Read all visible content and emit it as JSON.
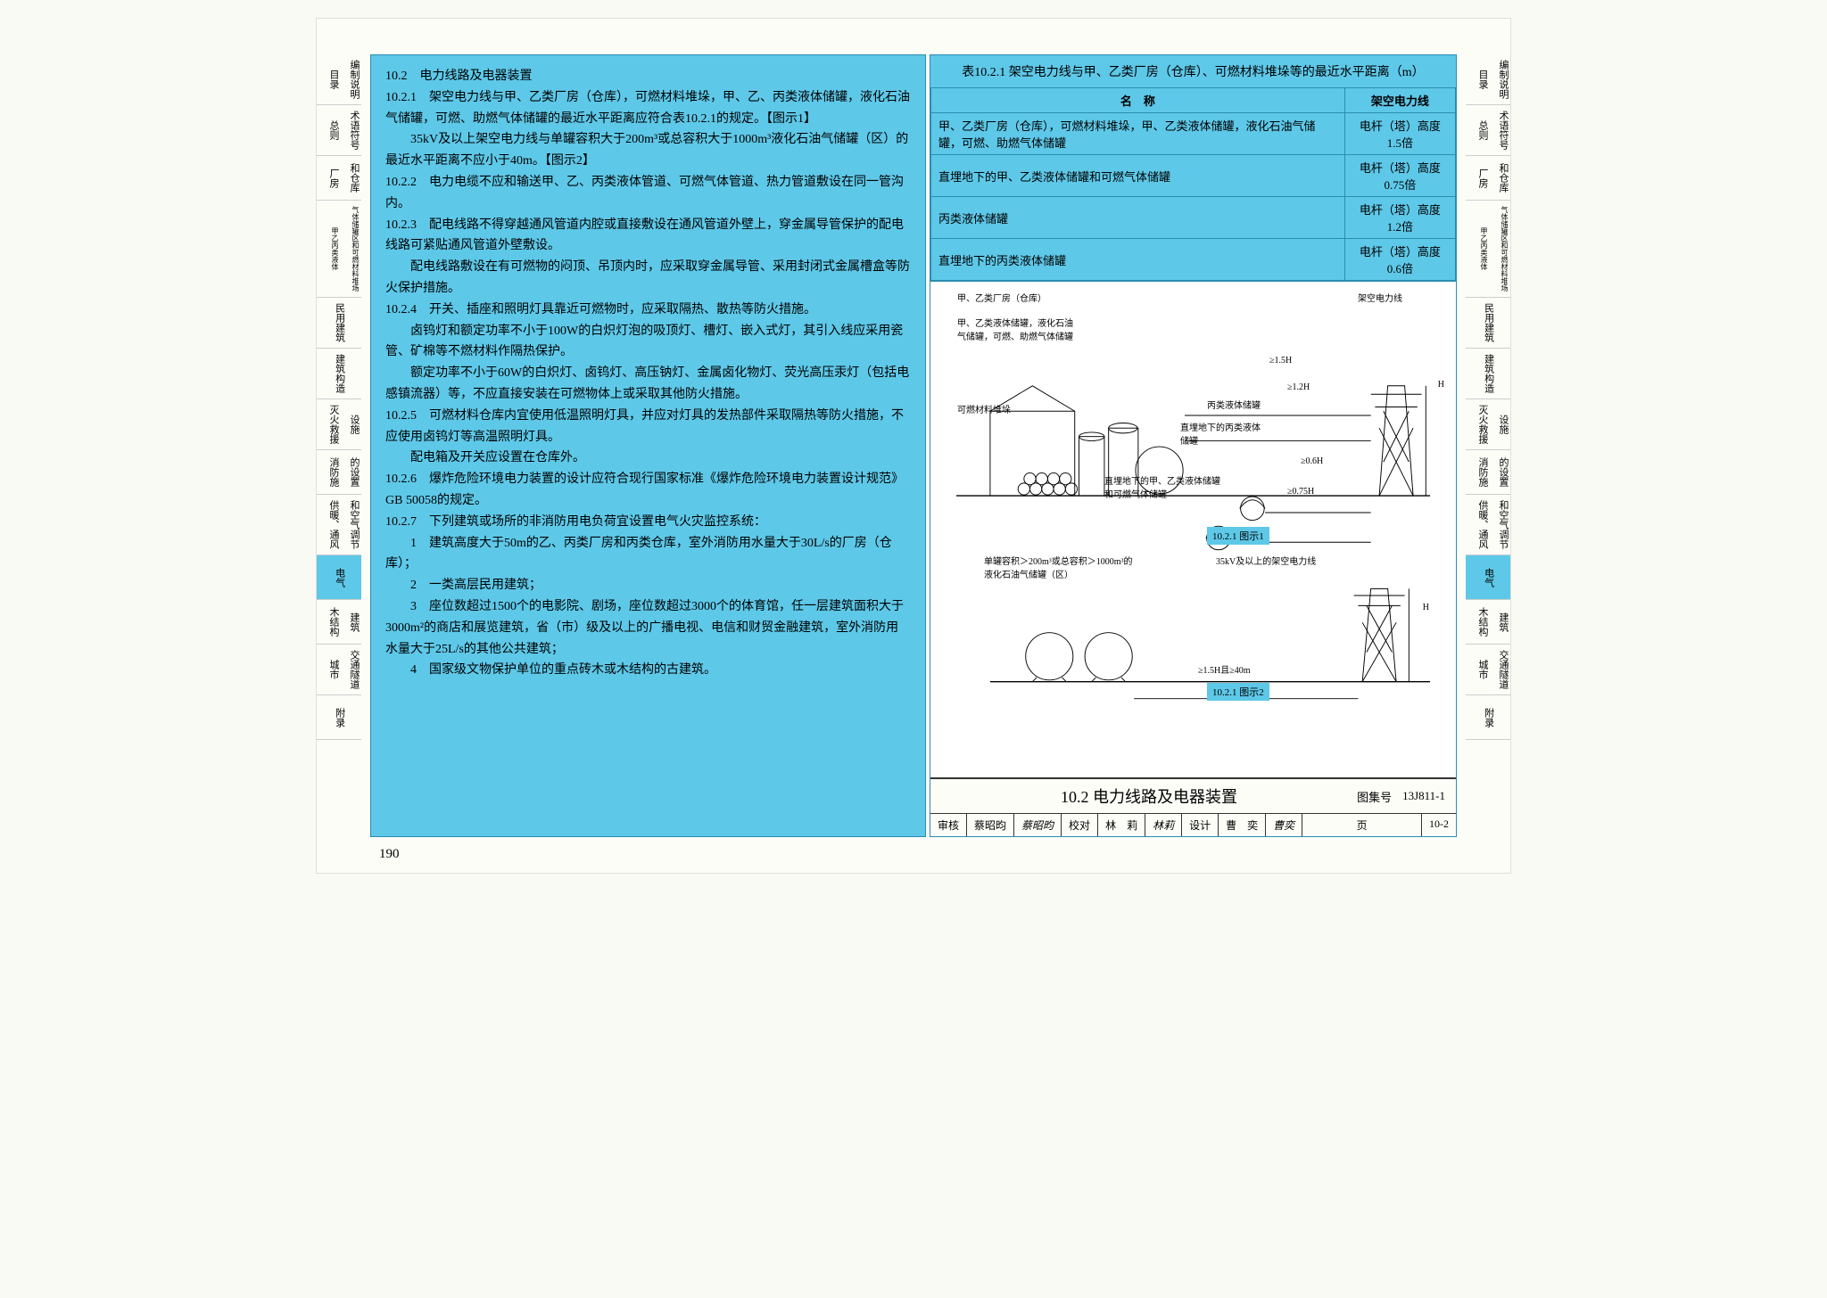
{
  "tabs": [
    {
      "l1": "目录",
      "l2": "编制说明"
    },
    {
      "l1": "总则",
      "l2": "术语符号"
    },
    {
      "l1": "厂房",
      "l2": "和仓库"
    },
    {
      "l1": "甲乙丙类液体",
      "l2": "气体储罐区和可燃材料堆场",
      "tiny": true
    },
    {
      "l1": "民用建筑",
      "l2": ""
    },
    {
      "l1": "建筑构造",
      "l2": ""
    },
    {
      "l1": "灭火救援",
      "l2": "设施"
    },
    {
      "l1": "消防施",
      "l2": "的设置"
    },
    {
      "l1": "供暖、通风",
      "l2": "和空气调节"
    },
    {
      "l1": "电气",
      "l2": "",
      "active": true
    },
    {
      "l1": "木结构",
      "l2": "建筑"
    },
    {
      "l1": "城市",
      "l2": "交通隧道"
    },
    {
      "l1": "附录",
      "l2": ""
    }
  ],
  "body": {
    "h1": "10.2　电力线路及电器装置",
    "p1": "10.2.1　架空电力线与甲、乙类厂房（仓库），可燃材料堆垛，甲、乙、丙类液体储罐，液化石油气储罐，可燃、助燃气体储罐的最近水平距离应符合表10.2.1的规定。【图示1】",
    "p2": "35kV及以上架空电力线与单罐容积大于200m³或总容积大于1000m³液化石油气储罐（区）的最近水平距离不应小于40m。【图示2】",
    "p3": "10.2.2　电力电缆不应和输送甲、乙、丙类液体管道、可燃气体管道、热力管道敷设在同一管沟内。",
    "p4": "10.2.3　配电线路不得穿越通风管道内腔或直接敷设在通风管道外壁上，穿金属导管保护的配电线路可紧贴通风管道外壁敷设。",
    "p5": "配电线路敷设在有可燃物的闷顶、吊顶内时，应采取穿金属导管、采用封闭式金属槽盒等防火保护措施。",
    "p6": "10.2.4　开关、插座和照明灯具靠近可燃物时，应采取隔热、散热等防火措施。",
    "p7": "卤钨灯和额定功率不小于100W的白炽灯泡的吸顶灯、槽灯、嵌入式灯，其引入线应采用瓷管、矿棉等不燃材料作隔热保护。",
    "p8": "额定功率不小于60W的白炽灯、卤钨灯、高压钠灯、金属卤化物灯、荧光高压汞灯（包括电感镇流器）等，不应直接安装在可燃物体上或采取其他防火措施。",
    "p9": "10.2.5　可燃材料仓库内宜使用低温照明灯具，并应对灯具的发热部件采取隔热等防火措施，不应使用卤钨灯等高温照明灯具。",
    "p10": "配电箱及开关应设置在仓库外。",
    "p11": "10.2.6　爆炸危险环境电力装置的设计应符合现行国家标准《爆炸危险环境电力装置设计规范》GB 50058的规定。",
    "p12": "10.2.7　下列建筑或场所的非消防用电负荷宜设置电气火灾监控系统：",
    "li1": "1　建筑高度大于50m的乙、丙类厂房和丙类仓库，室外消防用水量大于30L/s的厂房（仓库）；",
    "li2": "2　一类高层民用建筑；",
    "li3": "3　座位数超过1500个的电影院、剧场，座位数超过3000个的体育馆，任一层建筑面积大于3000m²的商店和展览建筑，省（市）级及以上的广播电视、电信和财贸金融建筑，室外消防用水量大于25L/s的其他公共建筑；",
    "li4": "4　国家级文物保护单位的重点砖木或木结构的古建筑。"
  },
  "table": {
    "title": "表10.2.1 架空电力线与甲、乙类厂房（仓库）、可燃材料堆垛等的最近水平距离（m）",
    "h1": "名　称",
    "h2": "架空电力线",
    "r1c1": "甲、乙类厂房（仓库），可燃材料堆垛，甲、乙类液体储罐，液化石油气储罐，可燃、助燃气体储罐",
    "r1c2": "电杆（塔）高度1.5倍",
    "r2c1": "直埋地下的甲、乙类液体储罐和可燃气体储罐",
    "r2c2": "电杆（塔）高度0.75倍",
    "r3c1": "丙类液体储罐",
    "r3c2": "电杆（塔）高度1.2倍",
    "r4c1": "直埋地下的丙类液体储罐",
    "r4c2": "电杆（塔）高度0.6倍"
  },
  "diagram": {
    "lbl1": "甲、乙类厂房（仓库）",
    "lbl2": "甲、乙类液体储罐，液化石油气储罐，可燃、助燃气体储罐",
    "lbl3": "可燃材料堆垛",
    "lbl4": "架空电力线",
    "lbl5": "丙类液体储罐",
    "lbl6": "直埋地下的丙类液体储罐",
    "lbl7": "直埋地下的甲、乙类液体储罐和可燃气体储罐",
    "lbl8": "单罐容积＞200m³或总容积＞1000m³的液化石油气储罐（区）",
    "lbl9": "35kV及以上的架空电力线",
    "dim1": "≥1.5H",
    "dim2": "≥1.2H",
    "dim3": "≥0.6H",
    "dim4": "≥0.75H",
    "dim5": "≥1.5H且≥40m",
    "dimH": "H",
    "fig1": "10.2.1 图示1",
    "fig2": "10.2.1 图示2"
  },
  "footer": {
    "title": "10.2 电力线路及电器装置",
    "setlabel": "图集号",
    "setcode": "13J811-1",
    "f1": "审核",
    "f2": "蔡昭昀",
    "f3": "校对",
    "f4": "林　莉",
    "f5": "设计",
    "f6": "曹　奕",
    "f7": "页",
    "f8": "10-2"
  },
  "pagenum": "190",
  "colors": {
    "cyan": "#5ec8e8",
    "border": "#2a8db0",
    "page": "#fdfdf8"
  }
}
